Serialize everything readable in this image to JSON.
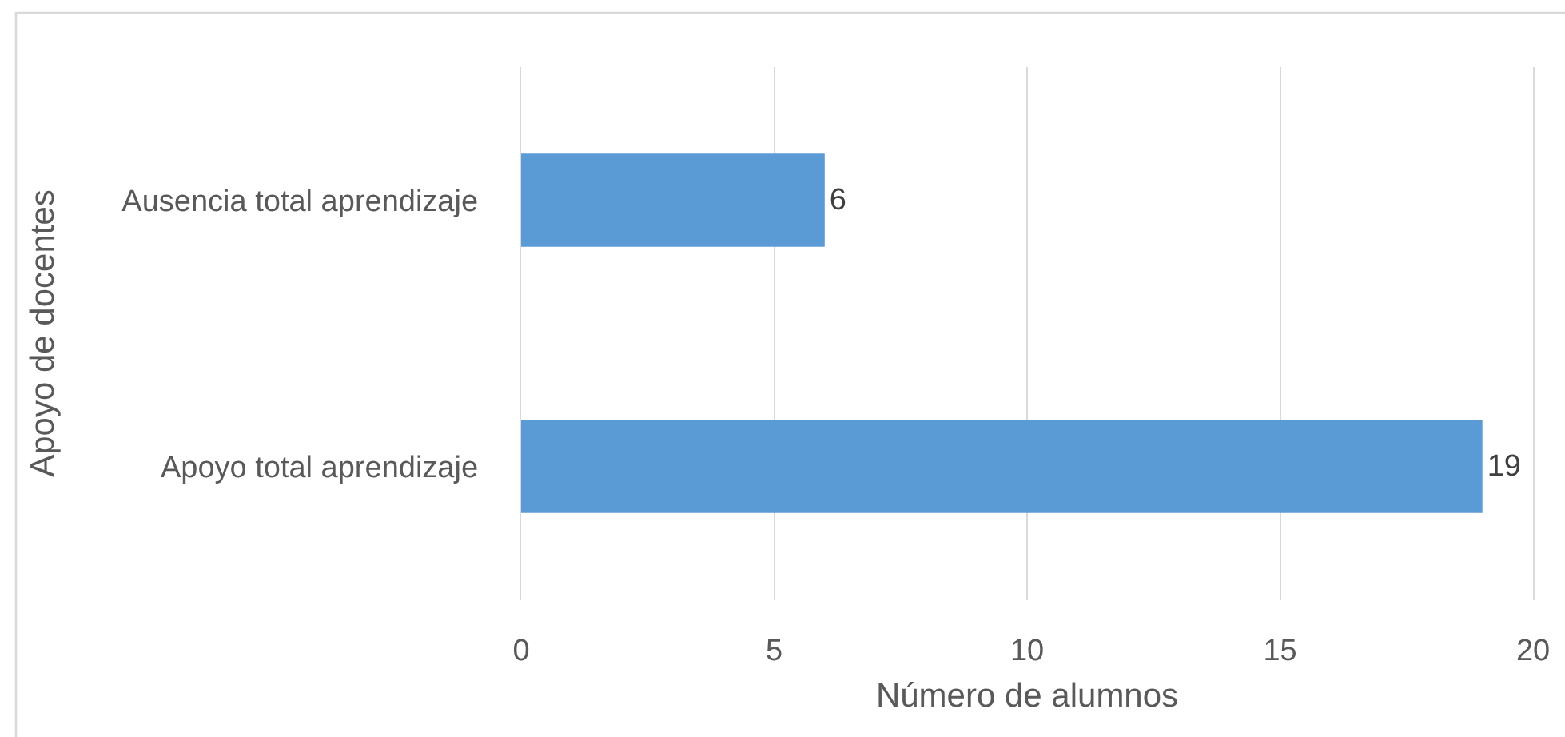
{
  "chart_data": {
    "type": "bar",
    "orientation": "horizontal",
    "xlabel": "Número de alumnos",
    "ylabel": "Apoyo de docentes",
    "categories": [
      "Ausencia total aprendizaje",
      "Apoyo total aprendizaje"
    ],
    "values": [
      6,
      19
    ],
    "color": "#5b9bd5",
    "xlim": [
      0,
      20
    ],
    "xticks": [
      0,
      5,
      10,
      15,
      20
    ],
    "grid": "x",
    "data_labels": true
  }
}
